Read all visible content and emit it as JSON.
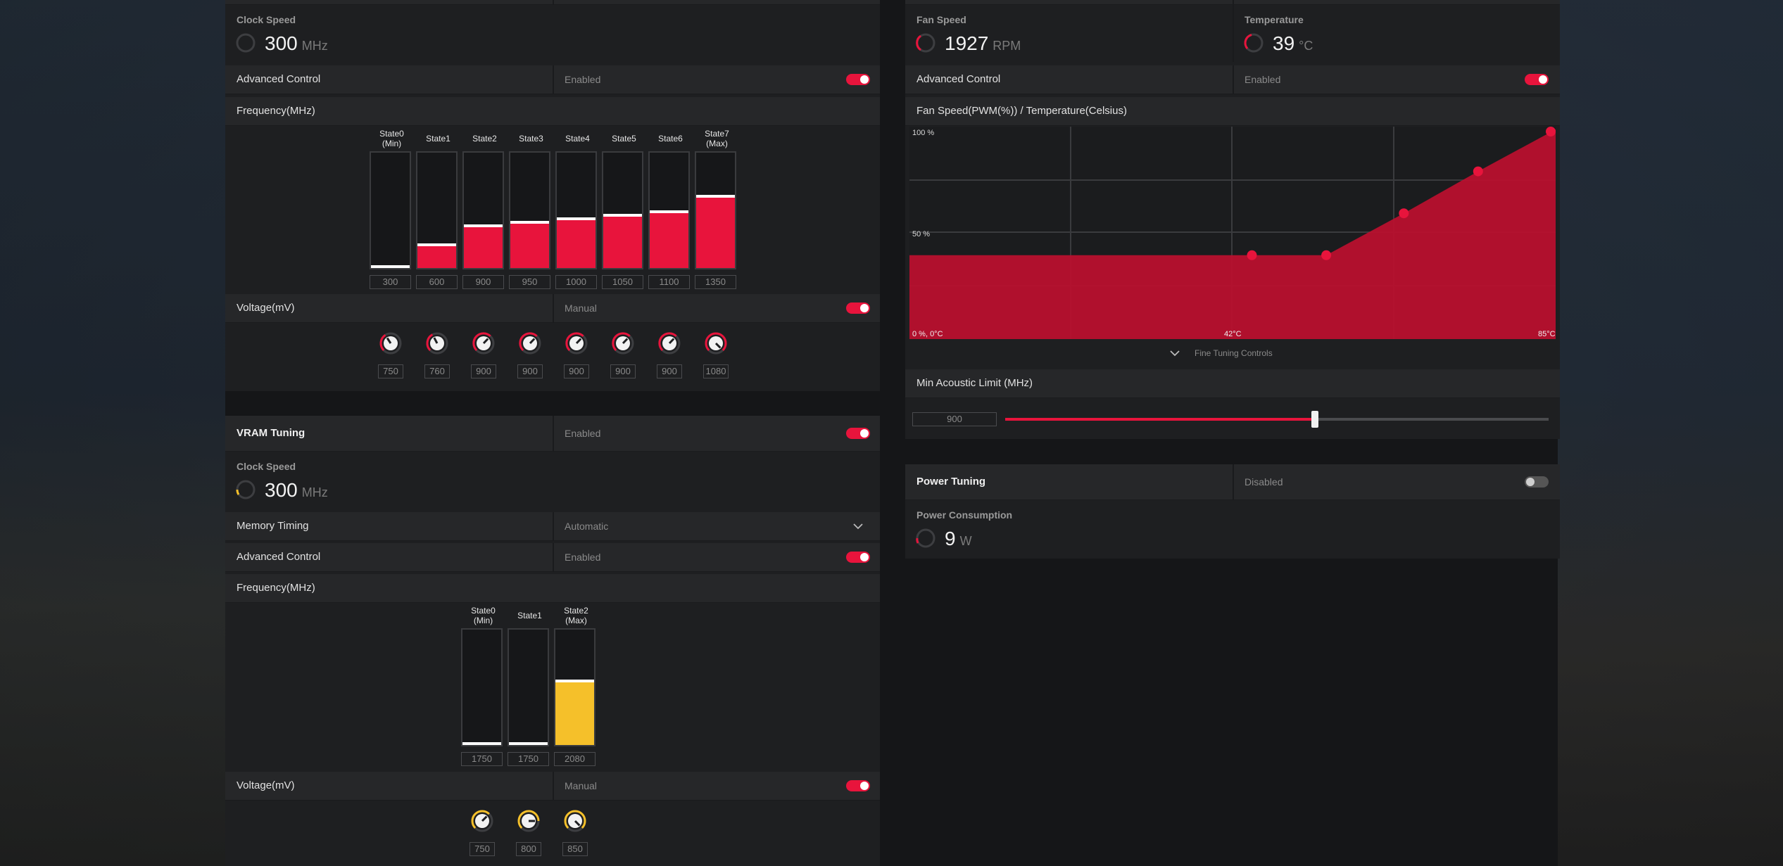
{
  "colors": {
    "accent_red": "#e8143c",
    "accent_yellow": "#f5c02a",
    "panel": "#1e1f21",
    "row": "#262729"
  },
  "gpu": {
    "clock": {
      "title": "Clock Speed",
      "value": "300",
      "unit": "MHz"
    },
    "advanced": {
      "label": "Advanced Control",
      "value": "Enabled"
    },
    "frequency_label": "Frequency(MHz)",
    "states": [
      {
        "l1": "State0",
        "l2": "(Min)",
        "value": "300",
        "level": 0.0
      },
      {
        "l1": "State1",
        "l2": "",
        "value": "600",
        "level": 0.19
      },
      {
        "l1": "State2",
        "l2": "",
        "value": "900",
        "level": 0.36
      },
      {
        "l1": "State3",
        "l2": "",
        "value": "950",
        "level": 0.39
      },
      {
        "l1": "State4",
        "l2": "",
        "value": "1000",
        "level": 0.42
      },
      {
        "l1": "State5",
        "l2": "",
        "value": "1050",
        "level": 0.45
      },
      {
        "l1": "State6",
        "l2": "",
        "value": "1100",
        "level": 0.48
      },
      {
        "l1": "State7",
        "l2": "(Max)",
        "value": "1350",
        "level": 0.62
      }
    ],
    "voltage": {
      "label": "Voltage(mV)",
      "value": "Manual",
      "values": [
        "750",
        "760",
        "900",
        "900",
        "900",
        "900",
        "900",
        "1080"
      ]
    }
  },
  "vram": {
    "title": "VRAM Tuning",
    "status": "Enabled",
    "clock": {
      "title": "Clock Speed",
      "value": "300",
      "unit": "MHz"
    },
    "timing": {
      "label": "Memory Timing",
      "value": "Automatic"
    },
    "advanced": {
      "label": "Advanced Control",
      "value": "Enabled"
    },
    "frequency_label": "Frequency(MHz)",
    "states": [
      {
        "l1": "State0",
        "l2": "(Min)",
        "value": "1750",
        "level": 0.0
      },
      {
        "l1": "State1",
        "l2": "",
        "value": "1750",
        "level": 0.0
      },
      {
        "l1": "State2",
        "l2": "(Max)",
        "value": "2080",
        "level": 0.55
      }
    ],
    "voltage": {
      "label": "Voltage(mV)",
      "value": "Manual",
      "values": [
        "750",
        "800",
        "850"
      ]
    }
  },
  "fan": {
    "fan_speed": {
      "title": "Fan Speed",
      "value": "1927",
      "unit": "RPM"
    },
    "temperature": {
      "title": "Temperature",
      "value": "39",
      "unit": "°C"
    },
    "advanced": {
      "label": "Advanced Control",
      "value": "Enabled"
    },
    "curve_title": "Fan Speed(PWM(%)) / Temperature(Celsius)",
    "y_top": "100 %",
    "y_mid": "50 %",
    "origin": "0 %, 0°C",
    "x_mid": "42°C",
    "x_max": "85°C",
    "fine_tuning": "Fine Tuning Controls",
    "min_acoustic": {
      "label": "Min Acoustic Limit (MHz)",
      "value": "900",
      "level": 0.57
    },
    "curve_points": [
      {
        "temp_pct": 0.0,
        "pwm_pct": 0.4
      },
      {
        "temp_pct": 0.53,
        "pwm_pct": 0.4
      },
      {
        "temp_pct": 0.645,
        "pwm_pct": 0.4
      },
      {
        "temp_pct": 0.765,
        "pwm_pct": 0.6
      },
      {
        "temp_pct": 0.88,
        "pwm_pct": 0.8
      },
      {
        "temp_pct": 1.0,
        "pwm_pct": 1.0
      }
    ]
  },
  "power": {
    "title": "Power Tuning",
    "status": "Disabled",
    "consumption": {
      "title": "Power Consumption",
      "value": "9",
      "unit": "W"
    }
  }
}
